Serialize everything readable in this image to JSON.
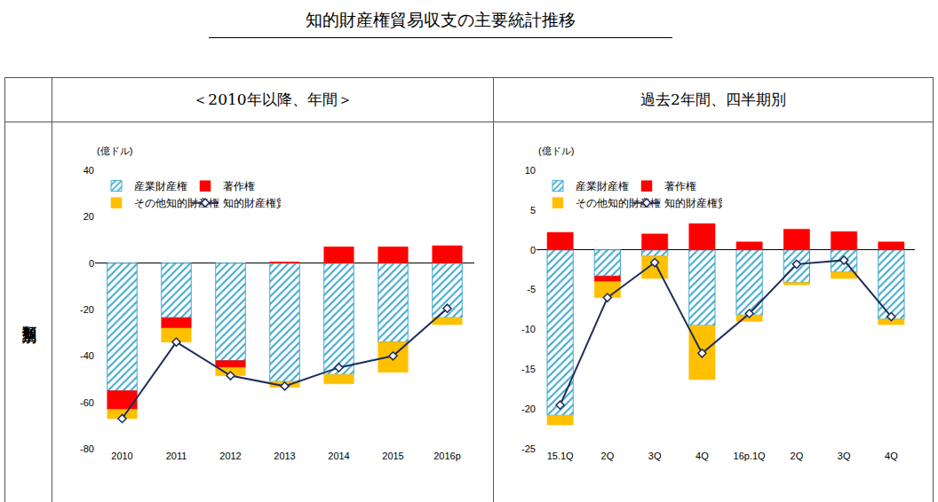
{
  "title": "知的財産権貿易収支の主要統計推移",
  "column_headers": [
    "＜2010年以降、年間＞",
    "過去2年間、四半期別"
  ],
  "row_label": "類型別",
  "chart_data": [
    {
      "type": "bar",
      "stacked": true,
      "ylabel": "(億ドル)",
      "categories": [
        "2010",
        "2011",
        "2012",
        "2013",
        "2014",
        "2015",
        "2016p"
      ],
      "series": [
        {
          "name": "産業財産権",
          "color": "#3fa9cf",
          "marker": "hatch",
          "values": [
            -55,
            -23.5,
            -42,
            -51,
            -48,
            -34,
            -23.5
          ]
        },
        {
          "name": "著作権",
          "color": "#ff0000",
          "values": [
            -8,
            -4.5,
            -3,
            0.5,
            7,
            7,
            7.5
          ]
        },
        {
          "name": "その他知的財産権",
          "color": "#ffc000",
          "values": [
            -4,
            -6,
            -3.5,
            -2.5,
            -4,
            -13,
            -3
          ]
        },
        {
          "name": "知的財産権貿易収支",
          "type": "line",
          "color": "#1f2d5c",
          "marker": "diamond",
          "values": [
            -67,
            -34,
            -48.5,
            -53,
            -45,
            -40,
            -19.5
          ]
        }
      ],
      "ylim": [
        -80,
        40
      ],
      "yticks": [
        -80,
        -60,
        -40,
        -20,
        0,
        20,
        40
      ],
      "grid": false,
      "legend": "upper left"
    },
    {
      "type": "bar",
      "stacked": true,
      "ylabel": "(億ドル)",
      "categories": [
        "15.1Q",
        "2Q",
        "3Q",
        "4Q",
        "16p.1Q",
        "2Q",
        "3Q",
        "4Q"
      ],
      "series": [
        {
          "name": "産業財産権",
          "color": "#3fa9cf",
          "marker": "hatch",
          "values": [
            -20.8,
            -3.3,
            -0.8,
            -9.5,
            -8.2,
            -4.1,
            -2.8,
            -8.7
          ]
        },
        {
          "name": "著作権",
          "color": "#ff0000",
          "values": [
            2.2,
            -0.7,
            2,
            3.3,
            1,
            2.6,
            2.3,
            1
          ]
        },
        {
          "name": "その他知的財産権",
          "color": "#ffc000",
          "values": [
            -1.2,
            -2,
            -2.8,
            -6.8,
            -0.8,
            -0.3,
            -0.8,
            -0.7
          ]
        },
        {
          "name": "知的財産権貿易収支",
          "type": "line",
          "color": "#1f2d5c",
          "marker": "diamond",
          "values": [
            -19.5,
            -6,
            -1.6,
            -13,
            -8,
            -1.8,
            -1.3,
            -8.4
          ]
        }
      ],
      "ylim": [
        -25,
        10
      ],
      "yticks": [
        -25,
        -20,
        -15,
        -10,
        -5,
        0,
        5,
        10
      ],
      "grid": false,
      "legend": "upper left"
    }
  ]
}
